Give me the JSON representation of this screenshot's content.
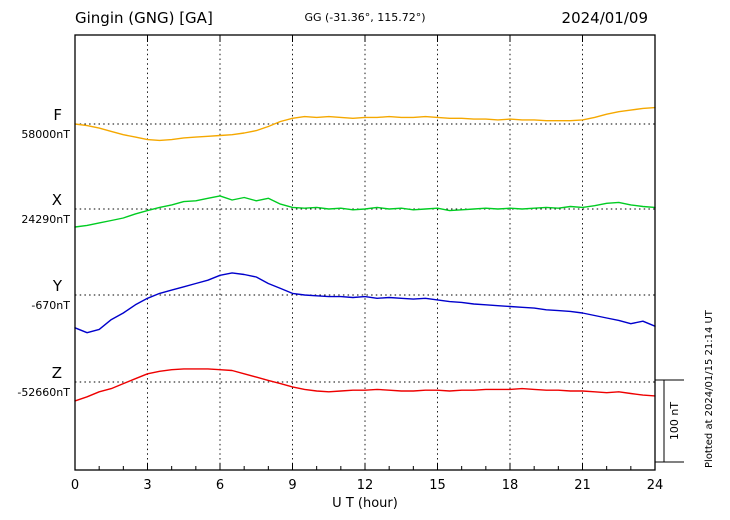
{
  "header": {
    "title": "Gingin (GNG)  [GA]",
    "coords": "GG (-31.36°, 115.72°)",
    "date": "2024/01/09"
  },
  "scale_bar": {
    "label": "100 nT"
  },
  "watermark": {
    "plotted_at": "Plotted at 2024/01/15 21:14 UT"
  },
  "chart_data": {
    "type": "line",
    "title": "Gingin (GNG) [GA] magnetogram 2024/01/09",
    "xlabel": "U T (hour)",
    "ylabel": "",
    "x_range_hours": [
      0,
      24
    ],
    "x_ticks": [
      0,
      3,
      6,
      9,
      12,
      15,
      18,
      21,
      24
    ],
    "scale_nT_per_division": 100,
    "grid": "dotted vertical at 3h intervals, dotted horizontal baselines per trace",
    "x_hours": [
      0,
      0.5,
      1,
      1.5,
      2,
      2.5,
      3,
      3.5,
      4,
      4.5,
      5,
      5.5,
      6,
      6.5,
      7,
      7.5,
      8,
      8.5,
      9,
      9.5,
      10,
      10.5,
      11,
      11.5,
      12,
      12.5,
      13,
      13.5,
      14,
      14.5,
      15,
      15.5,
      16,
      16.5,
      17,
      17.5,
      18,
      18.5,
      19,
      19.5,
      20,
      20.5,
      21,
      21.5,
      22,
      22.5,
      23,
      23.5,
      24
    ],
    "series": [
      {
        "name": "F",
        "color": "#f5a800",
        "baseline_nT": 58000,
        "baseline_label": "58000nT",
        "offsets_nT": [
          0,
          -2,
          -5,
          -9,
          -13,
          -16,
          -19,
          -20,
          -19,
          -17,
          -16,
          -15,
          -14,
          -13,
          -11,
          -8,
          -3,
          3,
          7,
          9,
          8,
          9,
          8,
          7,
          8,
          8,
          9,
          8,
          8,
          9,
          8,
          7,
          7,
          6,
          6,
          5,
          6,
          5,
          5,
          4,
          4,
          4,
          5,
          8,
          12,
          15,
          17,
          19,
          20
        ]
      },
      {
        "name": "X",
        "color": "#00cc22",
        "baseline_nT": 24290,
        "baseline_label": "24290nT",
        "offsets_nT": [
          -22,
          -20,
          -17,
          -14,
          -11,
          -6,
          -2,
          2,
          5,
          9,
          10,
          13,
          16,
          11,
          14,
          10,
          13,
          6,
          2,
          1,
          2,
          0,
          1,
          -1,
          0,
          2,
          0,
          1,
          -1,
          0,
          1,
          -2,
          -1,
          0,
          1,
          0,
          1,
          0,
          1,
          2,
          1,
          3,
          2,
          4,
          7,
          8,
          5,
          3,
          2
        ]
      },
      {
        "name": "Y",
        "color": "#0000cc",
        "baseline_nT": -670,
        "baseline_label": "-670nT",
        "offsets_nT": [
          -40,
          -46,
          -42,
          -30,
          -22,
          -12,
          -4,
          2,
          6,
          10,
          14,
          18,
          24,
          27,
          25,
          22,
          14,
          8,
          2,
          0,
          -1,
          -2,
          -2,
          -3,
          -2,
          -4,
          -3,
          -4,
          -5,
          -4,
          -6,
          -8,
          -9,
          -11,
          -12,
          -13,
          -14,
          -15,
          -16,
          -18,
          -19,
          -20,
          -22,
          -25,
          -28,
          -31,
          -35,
          -32,
          -38
        ]
      },
      {
        "name": "Z",
        "color": "#ee0000",
        "baseline_nT": -52660,
        "baseline_label": "-52660nT",
        "offsets_nT": [
          -23,
          -18,
          -12,
          -8,
          -2,
          4,
          10,
          13,
          15,
          16,
          16,
          16,
          15,
          14,
          10,
          6,
          2,
          -2,
          -6,
          -9,
          -11,
          -12,
          -11,
          -10,
          -10,
          -9,
          -10,
          -11,
          -11,
          -10,
          -10,
          -11,
          -10,
          -10,
          -9,
          -9,
          -9,
          -8,
          -9,
          -10,
          -10,
          -11,
          -11,
          -12,
          -13,
          -12,
          -14,
          -16,
          -17
        ]
      }
    ]
  }
}
